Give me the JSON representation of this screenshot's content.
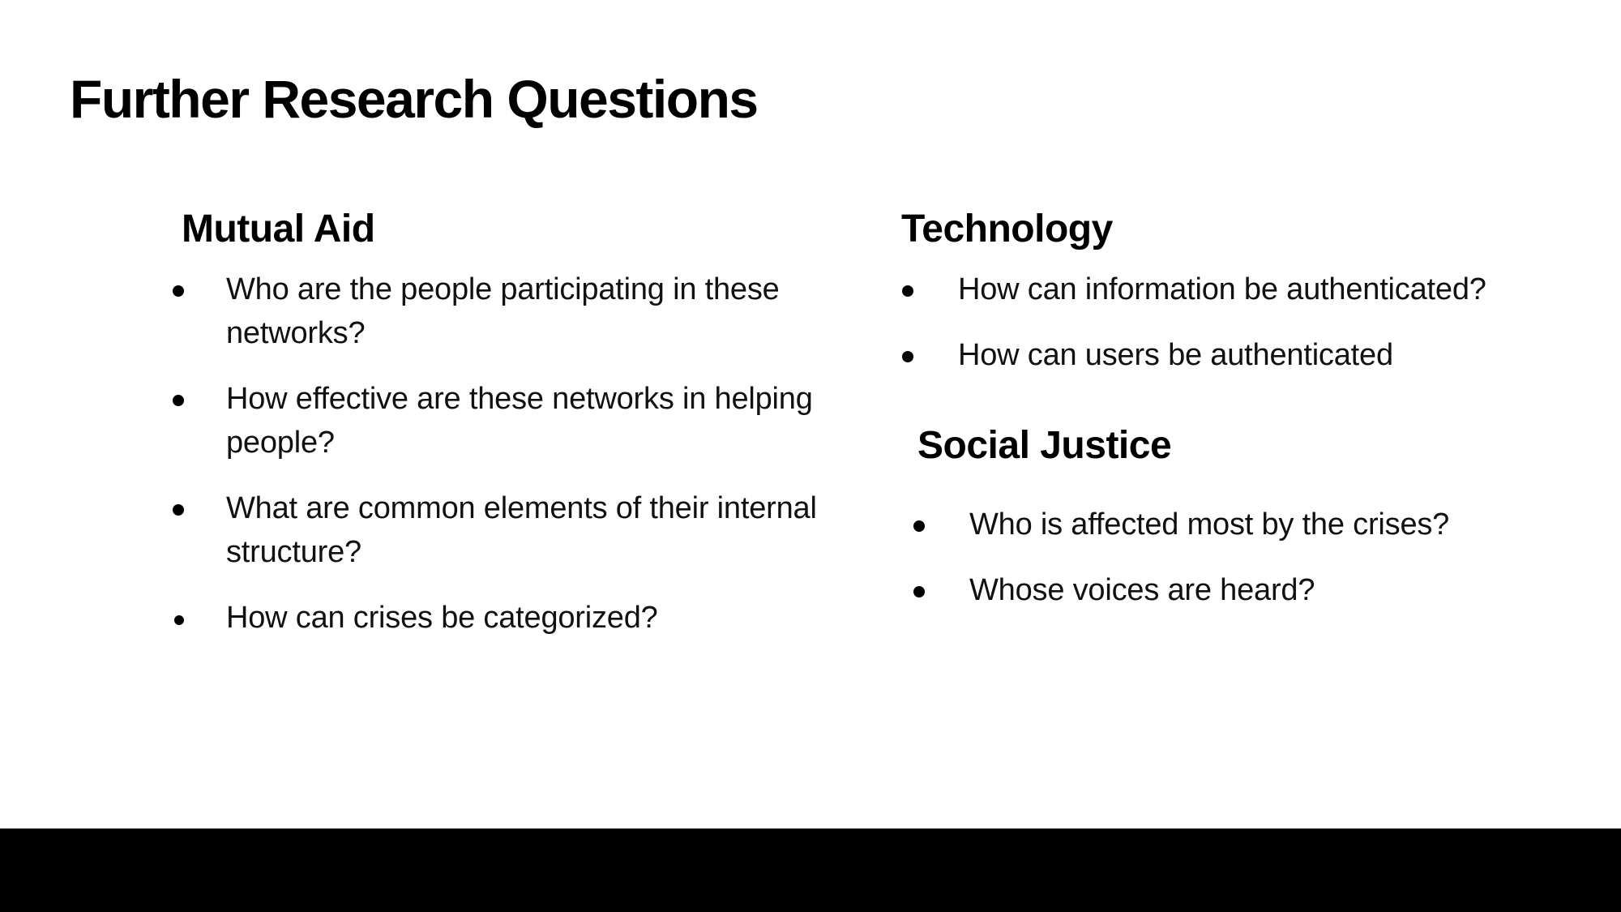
{
  "title": "Further Research Questions",
  "sections": {
    "mutual_aid": {
      "heading": "Mutual Aid",
      "items": [
        "Who are the people participating in these networks?",
        "How effective are these networks in helping people?",
        "What are common elements of their internal structure?",
        "How can crises be categorized?"
      ]
    },
    "technology": {
      "heading": "Technology",
      "items": [
        "How can information be authenticated?",
        "How can users be authenticated"
      ]
    },
    "social_justice": {
      "heading": "Social Justice",
      "items": [
        "Who is affected most by the crises?",
        "Whose voices are heard?"
      ]
    }
  },
  "colors": {
    "background": "#ffffff",
    "text": "#000000",
    "footer_bar": "#000000"
  }
}
